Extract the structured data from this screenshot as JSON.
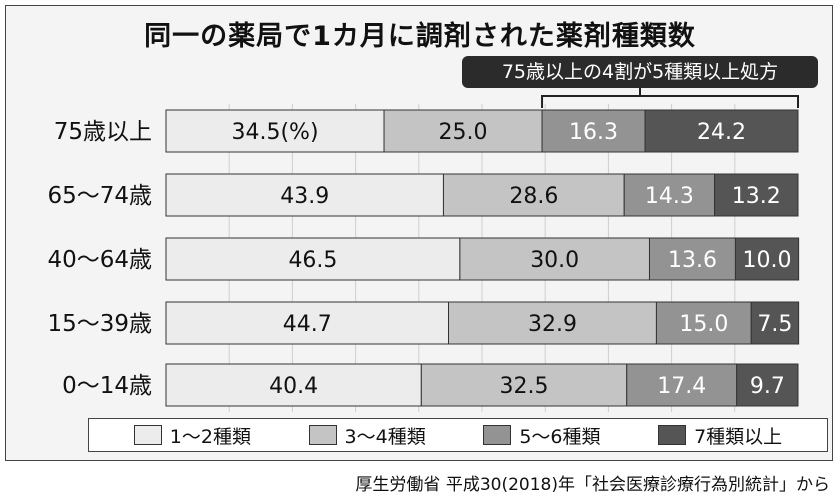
{
  "title": "同一の薬局で1カ月に調剤された薬剤種類数",
  "callout": "75歳以上の4割が5種類以上処方",
  "source": "厚生労働省 平成30(2018)年「社会医療診療行為別統計」から",
  "chart_data": {
    "type": "bar",
    "stacked": true,
    "orientation": "horizontal",
    "unit_note": "(%)",
    "xlim": [
      0,
      100
    ],
    "grid": true,
    "legend_position": "bottom",
    "categories": [
      "75歳以上",
      "65〜74歳",
      "40〜64歳",
      "15〜39歳",
      "0〜14歳"
    ],
    "series": [
      {
        "name": "1〜2種類",
        "color": "#ececec",
        "values": [
          34.5,
          43.9,
          46.5,
          44.7,
          40.4
        ]
      },
      {
        "name": "3〜4種類",
        "color": "#c4c4c4",
        "values": [
          25.0,
          28.6,
          30.0,
          32.9,
          32.5
        ]
      },
      {
        "name": "5〜6種類",
        "color": "#939393",
        "values": [
          16.3,
          14.3,
          13.6,
          15.0,
          17.4
        ]
      },
      {
        "name": "7種類以上",
        "color": "#555555",
        "values": [
          24.2,
          13.2,
          10.0,
          7.5,
          9.7
        ]
      }
    ],
    "labels": [
      [
        "34.5",
        "25.0",
        "16.3",
        "24.2"
      ],
      [
        "43.9",
        "28.6",
        "14.3",
        "13.2"
      ],
      [
        "46.5",
        "30.0",
        "13.6",
        "10.0"
      ],
      [
        "44.7",
        "32.9",
        "15.0",
        "7.5"
      ],
      [
        "40.4",
        "32.5",
        "17.4",
        "9.7"
      ]
    ]
  }
}
